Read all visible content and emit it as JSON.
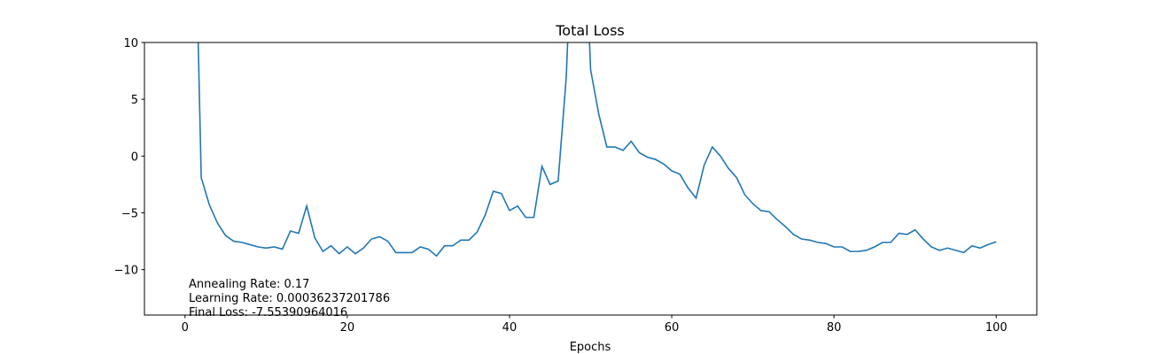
{
  "chart_data": {
    "type": "line",
    "title": "Total Loss",
    "xlabel": "Epochs",
    "x": [
      1,
      2,
      3,
      4,
      5,
      6,
      7,
      8,
      9,
      10,
      11,
      12,
      13,
      14,
      15,
      16,
      17,
      18,
      19,
      20,
      21,
      22,
      23,
      24,
      25,
      26,
      27,
      28,
      29,
      30,
      31,
      32,
      33,
      34,
      35,
      36,
      37,
      38,
      39,
      40,
      41,
      42,
      43,
      44,
      45,
      46,
      47,
      48,
      49,
      50,
      51,
      52,
      53,
      54,
      55,
      56,
      57,
      58,
      59,
      60,
      61,
      62,
      63,
      64,
      65,
      66,
      67,
      68,
      69,
      70,
      71,
      72,
      73,
      74,
      75,
      76,
      77,
      78,
      79,
      80,
      81,
      82,
      83,
      84,
      85,
      86,
      87,
      88,
      89,
      90,
      91,
      92,
      93,
      94,
      95,
      96,
      97,
      98,
      99,
      100
    ],
    "series": [
      {
        "name": "Total Loss",
        "color": "#1f77b4",
        "values": [
          30,
          -1.9,
          -4.3,
          -5.9,
          -7.0,
          -7.5,
          -7.6,
          -7.8,
          -8.0,
          -8.1,
          -8.0,
          -8.2,
          -6.6,
          -6.8,
          -4.4,
          -7.2,
          -8.4,
          -7.9,
          -8.6,
          -8.0,
          -8.6,
          -8.1,
          -7.3,
          -7.1,
          -7.5,
          -8.5,
          -8.5,
          -8.5,
          -8.0,
          -8.2,
          -8.8,
          -7.9,
          -7.9,
          -7.4,
          -7.4,
          -6.7,
          -5.2,
          -3.1,
          -3.3,
          -4.8,
          -4.4,
          -5.4,
          -5.4,
          -0.9,
          -2.5,
          -2.2,
          7.0,
          25,
          25,
          7.6,
          3.7,
          0.8,
          0.8,
          0.5,
          1.3,
          0.3,
          -0.1,
          -0.3,
          -0.7,
          -1.3,
          -1.6,
          -2.8,
          -3.7,
          -0.8,
          0.8,
          0.0,
          -1.1,
          -1.9,
          -3.4,
          -4.2,
          -4.8,
          -4.9,
          -5.6,
          -6.2,
          -6.9,
          -7.3,
          -7.4,
          -7.6,
          -7.7,
          -8.0,
          -8.0,
          -8.4,
          -8.4,
          -8.3,
          -8.0,
          -7.6,
          -7.6,
          -6.8,
          -6.9,
          -6.5,
          -7.3,
          -8.0,
          -8.3,
          -8.1,
          -8.3,
          -8.5,
          -7.9,
          -8.1,
          -7.8,
          -7.55
        ]
      }
    ],
    "xlim": [
      -5,
      105
    ],
    "ylim": [
      -14,
      10
    ],
    "xticks": [
      0,
      20,
      40,
      60,
      80,
      100
    ],
    "yticks": [
      {
        "value": -10,
        "label": "−10"
      },
      {
        "value": -5,
        "label": "−5"
      },
      0,
      5,
      10
    ],
    "annotations": [
      "Annealing Rate: 0.17",
      "Learning Rate: 0.00036237201786",
      "Final Loss: -7.55390964016"
    ]
  }
}
